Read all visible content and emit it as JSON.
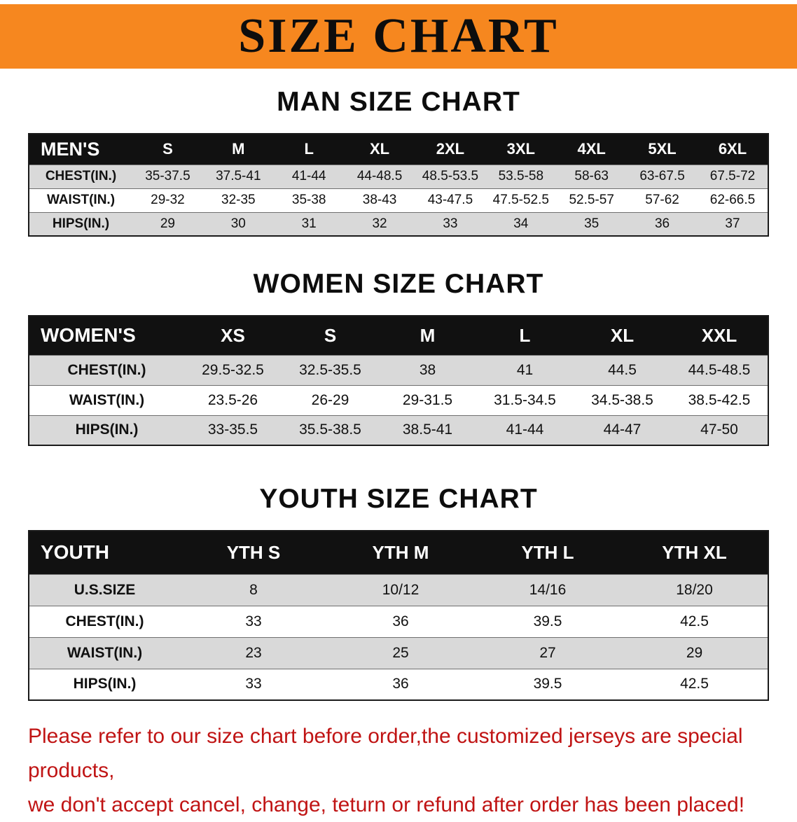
{
  "banner": {
    "title": "SIZE CHART"
  },
  "men": {
    "heading": "MAN SIZE CHART",
    "table": {
      "header": [
        "MEN'S",
        "S",
        "M",
        "L",
        "XL",
        "2XL",
        "3XL",
        "4XL",
        "5XL",
        "6XL"
      ],
      "rows": [
        [
          "CHEST(IN.)",
          "35-37.5",
          "37.5-41",
          "41-44",
          "44-48.5",
          "48.5-53.5",
          "53.5-58",
          "58-63",
          "63-67.5",
          "67.5-72"
        ],
        [
          "WAIST(IN.)",
          "29-32",
          "32-35",
          "35-38",
          "38-43",
          "43-47.5",
          "47.5-52.5",
          "52.5-57",
          "57-62",
          "62-66.5"
        ],
        [
          "HIPS(IN.)",
          "29",
          "30",
          "31",
          "32",
          "33",
          "34",
          "35",
          "36",
          "37"
        ]
      ]
    }
  },
  "women": {
    "heading": "WOMEN SIZE CHART",
    "table": {
      "header": [
        "WOMEN'S",
        "XS",
        "S",
        "M",
        "L",
        "XL",
        "XXL"
      ],
      "rows": [
        [
          "CHEST(IN.)",
          "29.5-32.5",
          "32.5-35.5",
          "38",
          "41",
          "44.5",
          "44.5-48.5"
        ],
        [
          "WAIST(IN.)",
          "23.5-26",
          "26-29",
          "29-31.5",
          "31.5-34.5",
          "34.5-38.5",
          "38.5-42.5"
        ],
        [
          "HIPS(IN.)",
          "33-35.5",
          "35.5-38.5",
          "38.5-41",
          "41-44",
          "44-47",
          "47-50"
        ]
      ]
    }
  },
  "youth": {
    "heading": "YOUTH SIZE CHART",
    "table": {
      "header": [
        "YOUTH",
        "YTH S",
        "YTH M",
        "YTH L",
        "YTH XL"
      ],
      "rows": [
        [
          "U.S.SIZE",
          "8",
          "10/12",
          "14/16",
          "18/20"
        ],
        [
          "CHEST(IN.)",
          "33",
          "36",
          "39.5",
          "42.5"
        ],
        [
          "WAIST(IN.)",
          "23",
          "25",
          "27",
          "29"
        ],
        [
          "HIPS(IN.)",
          "33",
          "36",
          "39.5",
          "42.5"
        ]
      ]
    }
  },
  "footer": {
    "line1": "Please refer to our size chart before order,the customized jerseys are special products,",
    "line2": "we don't accept cancel, change, teturn or refund after order has been placed!"
  },
  "colors": {
    "banner_bg": "#f6871f",
    "table_header_bg": "#111111",
    "row_alt_bg": "#d9d9d9",
    "footer_text": "#c01414",
    "heading_text": "#0d0d0d"
  }
}
